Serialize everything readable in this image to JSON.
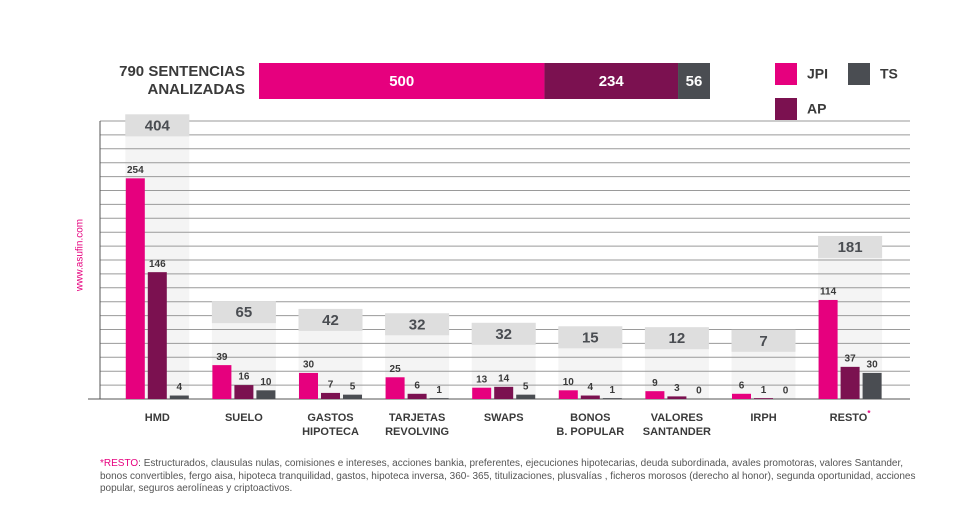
{
  "chart_data": {
    "type": "bar",
    "title": "790 SENTENCIAS\nANALIZADAS",
    "summary": {
      "values": [
        500,
        234,
        56
      ],
      "colors": [
        "#e6007e",
        "#7b1150",
        "#4a4d52"
      ],
      "xlim": [
        0,
        790
      ]
    },
    "categories": [
      "HMD",
      "SUELO",
      "GASTOS\nHIPOTECA",
      "TARJETAS\nREVOLVING",
      "SWAPS",
      "BONOS\nB. POPULAR",
      "VALORES\nSANTANDER",
      "IRPH",
      "RESTO"
    ],
    "footnote_marker": "*",
    "totals": [
      404,
      65,
      42,
      32,
      32,
      15,
      12,
      7,
      181
    ],
    "series": [
      {
        "name": "JPI",
        "color": "#e6007e",
        "values": [
          254,
          39,
          30,
          25,
          13,
          10,
          9,
          6,
          114
        ]
      },
      {
        "name": "AP",
        "color": "#7b1150",
        "values": [
          146,
          16,
          7,
          6,
          14,
          4,
          3,
          1,
          37
        ]
      },
      {
        "name": "TS",
        "color": "#4a4d52",
        "values": [
          4,
          10,
          5,
          1,
          5,
          1,
          0,
          0,
          30
        ]
      }
    ],
    "ylim": [
      0,
      320
    ],
    "yticks": [
      0,
      16,
      32,
      48,
      64,
      80,
      96,
      112,
      128,
      144,
      160,
      176,
      192,
      208,
      224,
      240,
      256,
      272,
      288,
      304,
      320
    ],
    "grid": true,
    "watermark": "www.asufin.com",
    "footnote_label": "*RESTO",
    "footnote": ": Estructurados, clausulas nulas, comisiones e intereses, acciones bankia, preferentes, ejecuciones hipotecarias, deuda subordinada, avales promotoras, valores Santander, bonos convertibles, fergo aisa, hipoteca tranquilidad, gastos, hipoteca inversa, 360- 365, titulizaciones, plusvalías , ficheros morosos (derecho al honor), segunda oportunidad, acciones popular, seguros aerolíneas y criptoactivos."
  }
}
